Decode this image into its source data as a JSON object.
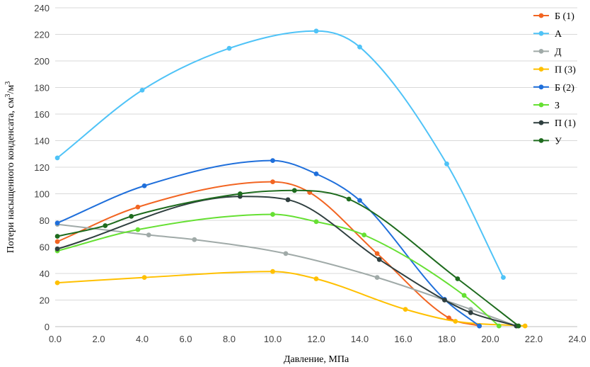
{
  "chart_data": {
    "type": "line",
    "title": "",
    "xlabel": "Давление, МПа",
    "ylabel_main": "Потери насыщенного конденсата, см",
    "ylabel_sup1": "3",
    "ylabel_mid": "/м",
    "ylabel_sup2": "3",
    "xlim": [
      0,
      24
    ],
    "ylim": [
      0,
      240
    ],
    "x_ticks": [
      0,
      2,
      4,
      6,
      8,
      10,
      12,
      14,
      16,
      18,
      20,
      22,
      24
    ],
    "x_tick_labels": [
      "0.0",
      "2.0",
      "4.0",
      "6.0",
      "8.0",
      "10.0",
      "12.0",
      "14.0",
      "16.0",
      "18.0",
      "20.0",
      "22.0",
      "24.0"
    ],
    "y_ticks": [
      0,
      20,
      40,
      60,
      80,
      100,
      120,
      140,
      160,
      180,
      200,
      220,
      240
    ],
    "y_tick_labels": [
      "0",
      "20",
      "40",
      "60",
      "80",
      "100",
      "120",
      "140",
      "160",
      "180",
      "200",
      "220",
      "240"
    ],
    "grid": "horizontal",
    "legend_position": "right",
    "series": [
      {
        "name": "Б (1)",
        "color": "#f26522",
        "points": [
          [
            0.1,
            64
          ],
          [
            3.8,
            90
          ],
          [
            10.0,
            109
          ],
          [
            11.7,
            101
          ],
          [
            14.8,
            55
          ],
          [
            18.1,
            6.5
          ],
          [
            19.5,
            0.5
          ]
        ]
      },
      {
        "name": "А",
        "color": "#4fc3f7",
        "points": [
          [
            0.1,
            127
          ],
          [
            4.0,
            178
          ],
          [
            8.0,
            209.5
          ],
          [
            12.0,
            222.5
          ],
          [
            14.0,
            210.5
          ],
          [
            18.0,
            122.5
          ],
          [
            20.6,
            37
          ]
        ]
      },
      {
        "name": "Д",
        "color": "#a0aaa8",
        "points": [
          [
            0.1,
            77
          ],
          [
            4.3,
            69
          ],
          [
            6.4,
            65.5
          ],
          [
            10.6,
            55
          ],
          [
            14.8,
            37
          ],
          [
            19.1,
            13
          ],
          [
            21.2,
            0.5
          ]
        ]
      },
      {
        "name": "П (3)",
        "color": "#ffc000",
        "points": [
          [
            0.1,
            33
          ],
          [
            4.1,
            37
          ],
          [
            10.0,
            41.5
          ],
          [
            12.0,
            36
          ],
          [
            16.1,
            13
          ],
          [
            18.4,
            4
          ],
          [
            21.6,
            0.5
          ]
        ]
      },
      {
        "name": "Б (2)",
        "color": "#1f6fdb",
        "points": [
          [
            0.1,
            78
          ],
          [
            4.1,
            106
          ],
          [
            10.0,
            125
          ],
          [
            12.0,
            115
          ],
          [
            14.0,
            95
          ],
          [
            17.9,
            20.5
          ],
          [
            19.5,
            0.5
          ]
        ]
      },
      {
        "name": "З",
        "color": "#66e033",
        "points": [
          [
            0.1,
            57
          ],
          [
            3.8,
            73
          ],
          [
            10.0,
            84.5
          ],
          [
            12.0,
            79
          ],
          [
            14.2,
            69
          ],
          [
            18.8,
            23.5
          ],
          [
            20.4,
            0.5
          ]
        ]
      },
      {
        "name": "П (1)",
        "color": "#2f3f3f",
        "points": [
          [
            0.1,
            58.5
          ],
          [
            8.5,
            98
          ],
          [
            10.7,
            95.5
          ],
          [
            14.9,
            50.5
          ],
          [
            17.9,
            20
          ],
          [
            19.1,
            10.5
          ],
          [
            21.2,
            0.5
          ]
        ]
      },
      {
        "name": "У",
        "color": "#1e6b1e",
        "points": [
          [
            0.1,
            68
          ],
          [
            2.3,
            76
          ],
          [
            3.5,
            83
          ],
          [
            8.5,
            100
          ],
          [
            11.0,
            102.5
          ],
          [
            13.5,
            96
          ],
          [
            18.5,
            36
          ],
          [
            21.3,
            0.5
          ]
        ]
      }
    ]
  }
}
